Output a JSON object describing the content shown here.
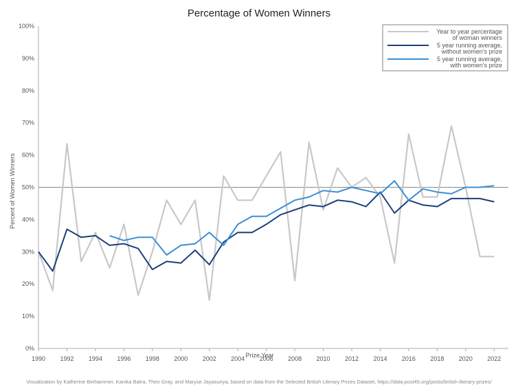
{
  "chart_data": {
    "type": "line",
    "title": "Percentage of Women Winners",
    "xlabel": "Prize Year",
    "ylabel": "Percent of Women Winners",
    "xlim": [
      1990,
      2023
    ],
    "ylim": [
      0,
      100
    ],
    "x_ticks": [
      "1990",
      "1992",
      "1994",
      "1996",
      "1998",
      "2000",
      "2002",
      "2004",
      "2006",
      "2008",
      "2010",
      "2012",
      "2014",
      "2016",
      "2018",
      "2020",
      "2022"
    ],
    "y_ticks": [
      "0%",
      "10%",
      "20%",
      "30%",
      "40%",
      "50%",
      "60%",
      "70%",
      "80%",
      "90%",
      "100%"
    ],
    "reference_line": 50,
    "legend_position": "top-right",
    "grid": false,
    "series": [
      {
        "name": "Year to year percentage of woman winners",
        "color": "#c8c8c8",
        "x": [
          1990,
          1991,
          1992,
          1993,
          1994,
          1995,
          1996,
          1997,
          1998,
          1999,
          2000,
          2001,
          2002,
          2003,
          2004,
          2005,
          2006,
          2007,
          2008,
          2009,
          2010,
          2011,
          2012,
          2013,
          2014,
          2015,
          2016,
          2017,
          2018,
          2019,
          2020,
          2021,
          2022
        ],
        "values": [
          30,
          18,
          63.5,
          27,
          36,
          25,
          38.5,
          16.5,
          30,
          46,
          38.5,
          46,
          15,
          53.5,
          46,
          46,
          53.5,
          61,
          21,
          64,
          43,
          56,
          50,
          53,
          47,
          26.5,
          66.5,
          47,
          47,
          69,
          50,
          28.5,
          28.5
        ]
      },
      {
        "name": "5 year running average, without women's prize",
        "color": "#1a3f7a",
        "x": [
          1990,
          1991,
          1992,
          1993,
          1994,
          1995,
          1996,
          1997,
          1998,
          1999,
          2000,
          2001,
          2002,
          2003,
          2004,
          2005,
          2006,
          2007,
          2008,
          2009,
          2010,
          2011,
          2012,
          2013,
          2014,
          2015,
          2016,
          2017,
          2018,
          2019,
          2020,
          2021,
          2022
        ],
        "values": [
          30,
          24,
          37,
          34.5,
          35,
          32,
          32.5,
          31,
          24.5,
          27,
          26.5,
          30.5,
          26,
          33,
          36,
          36,
          38.5,
          41.5,
          43,
          44.5,
          44,
          46,
          45.5,
          44,
          48.5,
          42,
          46,
          44.5,
          44,
          46.5,
          46.5,
          46.5,
          45.5
        ]
      },
      {
        "name": "5 year running average, with women's prize",
        "color": "#3a8fd6",
        "x": [
          1995,
          1996,
          1997,
          1998,
          1999,
          2000,
          2001,
          2002,
          2003,
          2004,
          2005,
          2006,
          2007,
          2008,
          2009,
          2010,
          2011,
          2012,
          2013,
          2014,
          2015,
          2016,
          2017,
          2018,
          2019,
          2020,
          2021,
          2022
        ],
        "values": [
          35,
          33.5,
          34.5,
          34.5,
          29,
          32,
          32.5,
          36,
          32,
          38.5,
          41,
          41,
          43.5,
          46,
          47,
          49,
          48.5,
          50,
          49,
          48,
          52,
          46,
          49.5,
          48.5,
          48,
          50,
          50,
          50.5
        ]
      }
    ],
    "legend_entries": [
      {
        "line1": "Year to year percentage",
        "line2": "of woman winners"
      },
      {
        "line1": "5 year running average,",
        "line2": "without women's prize"
      },
      {
        "line1": "5 year running average,",
        "line2": "with women's prize"
      }
    ],
    "credit": "Visualization by Katherine Binhammer, Kanika Batra, Theo Gray, and Maryse Jayasuriya, based on data from the Selected British Literary Prizes Dataset, https://data.post45.org/posts/british-literary-prizes/"
  }
}
